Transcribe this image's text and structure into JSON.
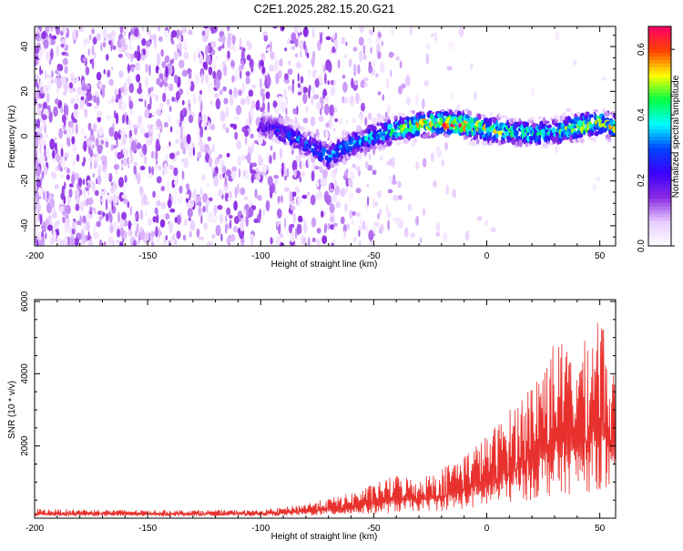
{
  "figure_title": "C2E1.2025.282.15.20.G21",
  "colors": {
    "snr_line": "#e8302c",
    "axis": "#000000",
    "colormap": [
      "#ffffff",
      "#e8ccff",
      "#8a2be2",
      "#3c00ff",
      "#0044ff",
      "#00ffff",
      "#00ff44",
      "#ffff00",
      "#ff4400",
      "#ff0066"
    ]
  },
  "chart_data": [
    {
      "type": "heatmap",
      "title": "",
      "xlabel": "Height of straight line (km)",
      "ylabel": "Frequency (Hz)",
      "xlim": [
        -200,
        57
      ],
      "ylim": [
        -49,
        49
      ],
      "x_ticks": [
        -200,
        -150,
        -100,
        -50,
        0,
        50
      ],
      "x_tick_labels": [
        "-200",
        "-150",
        "-100",
        "-50",
        "0",
        "50"
      ],
      "y_ticks": [
        -40,
        -20,
        0,
        20,
        40
      ],
      "y_tick_labels": [
        "-40",
        "-20",
        "0",
        "20",
        "40"
      ],
      "signal_ridge": {
        "x": [
          -100,
          -90,
          -80,
          -70,
          -60,
          -50,
          -40,
          -30,
          -20,
          -10,
          0,
          10,
          20,
          30,
          40,
          50,
          57
        ],
        "freq_center": [
          5,
          2,
          -3,
          -9,
          -4,
          0,
          3,
          5,
          6,
          5,
          3,
          2,
          1,
          2,
          4,
          6,
          4
        ],
        "peak_amplitude": [
          0.2,
          0.28,
          0.3,
          0.33,
          0.35,
          0.38,
          0.45,
          0.55,
          0.62,
          0.6,
          0.5,
          0.45,
          0.42,
          0.4,
          0.5,
          0.52,
          0.5
        ]
      },
      "noise_region": {
        "x_range": [
          -200,
          -70
        ],
        "amplitude_range": [
          0.02,
          0.15
        ]
      },
      "colorbar": {
        "label": "Normalized spectral amplitude",
        "range": [
          0,
          0.67
        ],
        "ticks": [
          0,
          0.2,
          0.4,
          0.6
        ],
        "tick_labels": [
          "0.0",
          "0.2",
          "0.4",
          "0.6"
        ]
      }
    },
    {
      "type": "line",
      "title": "",
      "xlabel": "Height of straight line (km)",
      "ylabel": "SNR (10 * v/v)",
      "xlim": [
        -200,
        57
      ],
      "ylim": [
        0,
        6050
      ],
      "x_ticks": [
        -200,
        -150,
        -100,
        -50,
        0,
        50
      ],
      "x_tick_labels": [
        "-200",
        "-150",
        "-100",
        "-50",
        "0",
        "50"
      ],
      "y_ticks": [
        2000,
        4000,
        6000
      ],
      "y_tick_labels": [
        "2000",
        "4000",
        "6000"
      ],
      "series": [
        {
          "name": "SNR",
          "x_envelope": [
            -200,
            -150,
            -100,
            -90,
            -80,
            -70,
            -60,
            -50,
            -40,
            -30,
            -20,
            -10,
            0,
            10,
            20,
            30,
            40,
            45,
            50,
            52,
            55,
            57
          ],
          "upper_envelope": [
            260,
            230,
            230,
            300,
            420,
            550,
            700,
            950,
            1200,
            1100,
            1400,
            1800,
            2300,
            3000,
            3800,
            5000,
            4600,
            5100,
            6050,
            5500,
            4200,
            3800
          ],
          "lower_envelope": [
            50,
            50,
            60,
            60,
            70,
            80,
            100,
            120,
            150,
            200,
            200,
            250,
            300,
            400,
            500,
            600,
            700,
            700,
            800,
            700,
            600,
            500
          ]
        }
      ]
    }
  ]
}
